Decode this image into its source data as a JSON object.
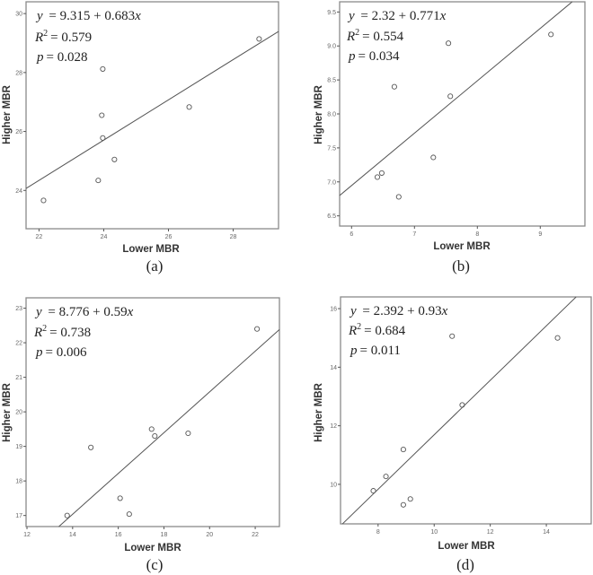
{
  "figure": {
    "panels": [
      {
        "id": "a",
        "caption": "(a)",
        "equation": {
          "y_label": "y",
          "rhs": "= 9.315 + 0.683",
          "x_var": "x"
        },
        "r2": {
          "label": "R",
          "sup": "2",
          "value": "= 0.579"
        },
        "p": {
          "label": "p",
          "value": "= 0.028"
        },
        "xlabel": "Lower MBR",
        "ylabel": "Higher MBR",
        "xticks": [
          "22",
          "24",
          "26",
          "28"
        ],
        "yticks": [
          "24",
          "26",
          "28",
          "30"
        ]
      },
      {
        "id": "b",
        "caption": "(b)",
        "equation": {
          "y_label": "y",
          "rhs": "= 2.32 + 0.771",
          "x_var": "x"
        },
        "r2": {
          "label": "R",
          "sup": "2",
          "value": "= 0.554"
        },
        "p": {
          "label": "p",
          "value": "= 0.034"
        },
        "xlabel": "Lower MBR",
        "ylabel": "Higher MBR",
        "xticks": [
          "6",
          "7",
          "8",
          "9"
        ],
        "yticks": [
          "6.5",
          "7.0",
          "7.5",
          "8.0",
          "8.5",
          "9.0",
          "9.5"
        ]
      },
      {
        "id": "c",
        "caption": "(c)",
        "equation": {
          "y_label": "y",
          "rhs": "= 8.776 + 0.59",
          "x_var": "x"
        },
        "r2": {
          "label": "R",
          "sup": "2",
          "value": "= 0.738"
        },
        "p": {
          "label": "p",
          "value": "= 0.006"
        },
        "xlabel": "Lower MBR",
        "ylabel": "Higher MBR",
        "xticks": [
          "12",
          "14",
          "16",
          "18",
          "20",
          "22"
        ],
        "yticks": [
          "17",
          "18",
          "19",
          "20",
          "21",
          "22",
          "23"
        ]
      },
      {
        "id": "d",
        "caption": "(d)",
        "equation": {
          "y_label": "y",
          "rhs": "= 2.392 + 0.93",
          "x_var": "x"
        },
        "r2": {
          "label": "R",
          "sup": "2",
          "value": "= 0.684"
        },
        "p": {
          "label": "p",
          "value": "= 0.011"
        },
        "xlabel": "Lower MBR",
        "ylabel": "Higher MBR",
        "xticks": [
          "8",
          "10",
          "12",
          "14"
        ],
        "yticks": [
          "10",
          "12",
          "14",
          "16"
        ]
      }
    ]
  },
  "chart_data": [
    {
      "type": "scatter",
      "title": "(a)",
      "xlabel": "Lower MBR",
      "ylabel": "Higher MBR",
      "xlim": [
        21.6,
        29.4
      ],
      "ylim": [
        22.7,
        30.4
      ],
      "xticks": [
        22,
        24,
        26,
        28
      ],
      "yticks": [
        24,
        26,
        28,
        30
      ],
      "grid": false,
      "annotations": [
        "y = 9.315 + 0.683x",
        "R^2 = 0.579",
        "p = 0.028"
      ],
      "fit": {
        "intercept": 9.315,
        "slope": 0.683
      },
      "x": [
        22.14,
        23.83,
        23.97,
        23.94,
        23.97,
        24.33,
        26.64,
        28.8
      ],
      "y": [
        23.66,
        24.34,
        25.78,
        26.55,
        28.12,
        25.05,
        26.83,
        29.14
      ]
    },
    {
      "type": "scatter",
      "title": "(b)",
      "xlabel": "Lower MBR",
      "ylabel": "Higher MBR",
      "xlim": [
        5.81,
        9.71
      ],
      "ylim": [
        6.35,
        9.65
      ],
      "xticks": [
        6,
        7,
        8,
        9
      ],
      "yticks": [
        6.5,
        7.0,
        7.5,
        8.0,
        8.5,
        9.0,
        9.5
      ],
      "grid": false,
      "annotations": [
        "y = 2.32 + 0.771x",
        "R^2 = 0.554",
        "p = 0.034"
      ],
      "fit": {
        "intercept": 2.32,
        "slope": 0.771
      },
      "x": [
        6.41,
        6.48,
        6.75,
        6.68,
        7.3,
        7.54,
        7.57,
        9.17
      ],
      "y": [
        7.07,
        7.13,
        6.78,
        8.4,
        7.36,
        9.04,
        8.26,
        9.17
      ]
    },
    {
      "type": "scatter",
      "title": "(c)",
      "xlabel": "Lower MBR",
      "ylabel": "Higher MBR",
      "xlim": [
        11.96,
        23.06
      ],
      "ylim": [
        16.68,
        23.3
      ],
      "xticks": [
        12,
        14,
        16,
        18,
        20,
        22
      ],
      "yticks": [
        17,
        18,
        19,
        20,
        21,
        22,
        23
      ],
      "grid": false,
      "annotations": [
        "y = 8.776 + 0.59x",
        "R^2 = 0.738",
        "p = 0.006"
      ],
      "fit": {
        "intercept": 8.776,
        "slope": 0.59
      },
      "x": [
        13.76,
        14.8,
        16.08,
        16.48,
        17.46,
        17.6,
        19.06,
        22.08
      ],
      "y": [
        17.0,
        18.97,
        17.5,
        17.04,
        19.5,
        19.3,
        19.38,
        22.4
      ]
    },
    {
      "type": "scatter",
      "title": "(d)",
      "xlabel": "Lower MBR",
      "ylabel": "Higher MBR",
      "xlim": [
        6.66,
        15.6
      ],
      "ylim": [
        8.65,
        16.4
      ],
      "xticks": [
        8,
        10,
        12,
        14
      ],
      "yticks": [
        10,
        12,
        14,
        16
      ],
      "grid": false,
      "annotations": [
        "y = 2.392 + 0.93x",
        "R^2 = 0.684",
        "p = 0.011"
      ],
      "fit": {
        "intercept": 2.392,
        "slope": 0.93
      },
      "x": [
        7.83,
        8.28,
        8.9,
        9.15,
        8.9,
        10.64,
        11.0,
        14.4
      ],
      "y": [
        9.78,
        10.27,
        9.3,
        9.5,
        11.19,
        15.06,
        12.71,
        15.0
      ]
    }
  ]
}
